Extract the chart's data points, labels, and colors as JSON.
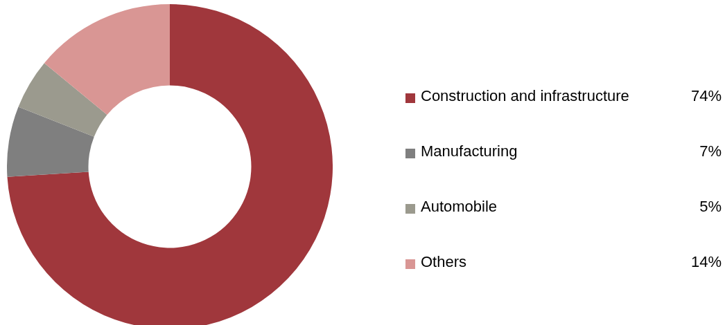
{
  "chart_data": {
    "type": "donut",
    "categories": [
      "Construction and infrastructure",
      "Manufacturing",
      "Automobile",
      "Others"
    ],
    "values": [
      74,
      7,
      5,
      14
    ],
    "colors": [
      "#a0373c",
      "#7f7f7f",
      "#9b9a8e",
      "#d99694"
    ],
    "value_labels": [
      "74%",
      "7%",
      "5%",
      "14%"
    ],
    "legend": "right"
  }
}
